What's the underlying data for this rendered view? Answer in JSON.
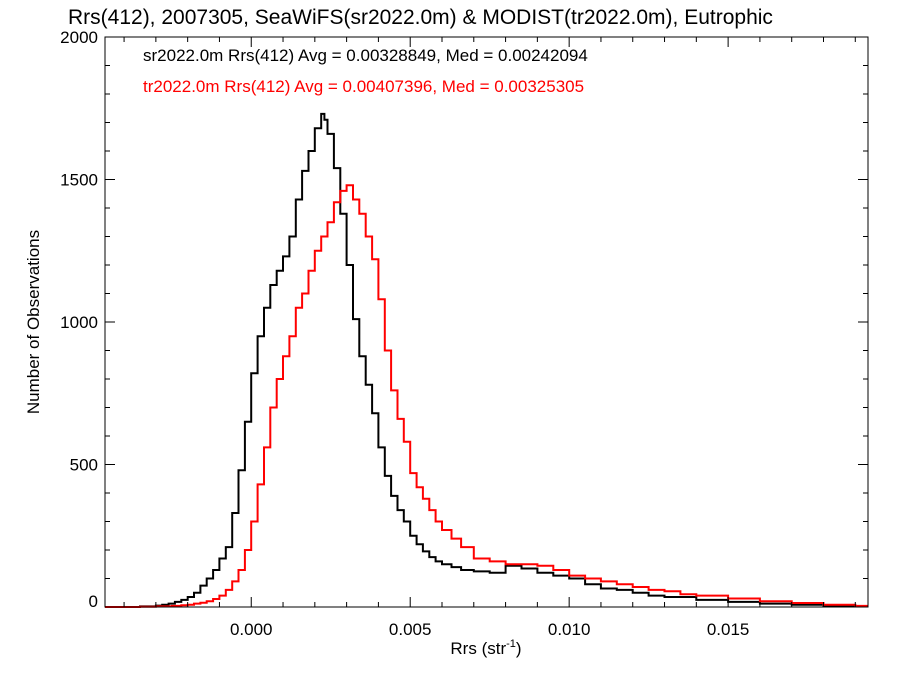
{
  "chart_data": {
    "type": "histogram",
    "title": "Rrs(412), 2007305, SeaWiFS(sr2022.0m) & MODIST(tr2022.0m), Eutrophic",
    "xlabel_main": "Rrs (str",
    "xlabel_sup": "-1",
    "xlabel_close": ")",
    "ylabel": "Number of Observations",
    "xlim": [
      -0.0046,
      0.0194
    ],
    "ylim": [
      0,
      2000
    ],
    "xticks": [
      0.0,
      0.005,
      0.01,
      0.015
    ],
    "xtick_labels": [
      "0.000",
      "0.005",
      "0.010",
      "0.015"
    ],
    "yticks": [
      0,
      500,
      1000,
      1500,
      2000
    ],
    "ytick_labels": [
      "0",
      "500",
      "1000",
      "1500",
      "2000"
    ],
    "grid": false,
    "legend_position": "top-left",
    "series": [
      {
        "name": "sr2022.0m Rrs(412)",
        "color": "#000000",
        "legend_text": "sr2022.0m Rrs(412) Avg = 0.00328849, Med = 0.00242094",
        "x": [
          -0.0046,
          -0.004,
          -0.0035,
          -0.003,
          -0.0028,
          -0.0026,
          -0.0024,
          -0.0022,
          -0.002,
          -0.0018,
          -0.0016,
          -0.0014,
          -0.0012,
          -0.001,
          -0.0008,
          -0.0006,
          -0.0004,
          -0.0002,
          0.0,
          0.0002,
          0.0004,
          0.0006,
          0.0008,
          0.001,
          0.0012,
          0.0014,
          0.0016,
          0.0018,
          0.002,
          0.0022,
          0.0023,
          0.0024,
          0.0026,
          0.0028,
          0.003,
          0.0032,
          0.0034,
          0.0036,
          0.0038,
          0.004,
          0.0042,
          0.0044,
          0.0046,
          0.0048,
          0.005,
          0.0052,
          0.0054,
          0.0056,
          0.0058,
          0.006,
          0.0063,
          0.0066,
          0.007,
          0.0075,
          0.008,
          0.0085,
          0.009,
          0.0095,
          0.01,
          0.0105,
          0.011,
          0.0115,
          0.012,
          0.0125,
          0.013,
          0.014,
          0.015,
          0.016,
          0.017,
          0.018,
          0.019
        ],
        "y": [
          0,
          0,
          2,
          5,
          8,
          12,
          18,
          25,
          35,
          50,
          75,
          100,
          130,
          170,
          210,
          330,
          480,
          650,
          820,
          950,
          1050,
          1130,
          1180,
          1230,
          1300,
          1430,
          1530,
          1600,
          1680,
          1730,
          1710,
          1660,
          1540,
          1380,
          1200,
          1010,
          880,
          780,
          680,
          560,
          460,
          390,
          340,
          300,
          250,
          220,
          195,
          175,
          160,
          150,
          140,
          130,
          125,
          120,
          145,
          135,
          120,
          110,
          100,
          80,
          65,
          60,
          50,
          40,
          35,
          25,
          18,
          12,
          8,
          5,
          3
        ]
      },
      {
        "name": "tr2022.0m Rrs(412)",
        "color": "#ff0000",
        "legend_text": "tr2022.0m Rrs(412) Avg = 0.00407396, Med = 0.00325305",
        "x": [
          -0.0046,
          -0.004,
          -0.0035,
          -0.003,
          -0.0025,
          -0.0022,
          -0.002,
          -0.0018,
          -0.0016,
          -0.0014,
          -0.0012,
          -0.001,
          -0.0008,
          -0.0006,
          -0.0004,
          -0.0002,
          0.0,
          0.0002,
          0.0004,
          0.0006,
          0.0008,
          0.001,
          0.0012,
          0.0014,
          0.0016,
          0.0018,
          0.002,
          0.0022,
          0.0024,
          0.0026,
          0.0028,
          0.003,
          0.0032,
          0.0034,
          0.0036,
          0.0038,
          0.004,
          0.0042,
          0.0044,
          0.0046,
          0.0048,
          0.005,
          0.0052,
          0.0054,
          0.0056,
          0.0058,
          0.006,
          0.0063,
          0.0066,
          0.007,
          0.0075,
          0.008,
          0.0085,
          0.009,
          0.0095,
          0.01,
          0.0105,
          0.011,
          0.0115,
          0.012,
          0.0125,
          0.013,
          0.0135,
          0.014,
          0.015,
          0.016,
          0.017,
          0.018,
          0.019
        ],
        "y": [
          0,
          0,
          1,
          2,
          4,
          6,
          8,
          12,
          15,
          20,
          28,
          40,
          60,
          90,
          130,
          200,
          300,
          430,
          560,
          700,
          800,
          880,
          950,
          1050,
          1100,
          1180,
          1250,
          1300,
          1350,
          1420,
          1460,
          1480,
          1430,
          1380,
          1300,
          1220,
          1080,
          900,
          760,
          660,
          580,
          470,
          420,
          380,
          340,
          300,
          270,
          240,
          210,
          170,
          160,
          150,
          150,
          145,
          130,
          110,
          100,
          90,
          80,
          70,
          60,
          55,
          45,
          40,
          30,
          20,
          14,
          8,
          4
        ]
      }
    ]
  }
}
